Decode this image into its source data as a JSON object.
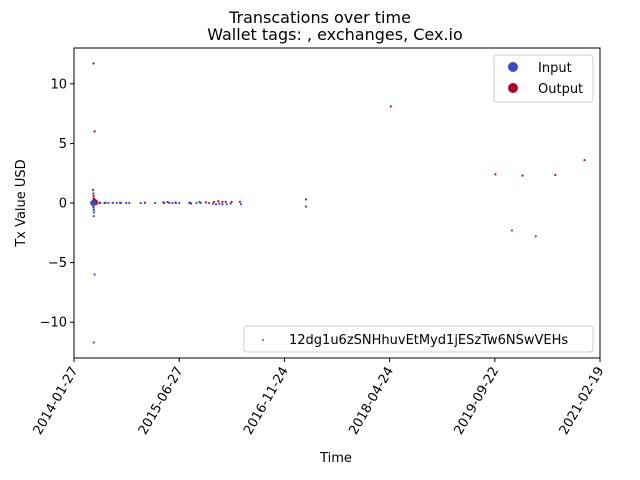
{
  "chart_data": {
    "type": "scatter",
    "title": "Transcations over time",
    "subtitle": "Wallet tags: , exchanges, Cex.io",
    "xlabel": "Time",
    "ylabel": "Tx Value USD",
    "x_range": [
      "2014-01-27",
      "2021-02-19"
    ],
    "ylim": [
      -13,
      13
    ],
    "x_ticks": [
      "2014-01-27",
      "2015-06-27",
      "2016-11-24",
      "2018-04-24",
      "2019-09-22",
      "2021-02-19"
    ],
    "y_ticks": [
      -10,
      -5,
      0,
      5,
      10
    ],
    "y_tick_labels": [
      "−10",
      "−5",
      "0",
      "5",
      "10"
    ],
    "grid": false,
    "legends": [
      {
        "placement": "top-right",
        "entries": [
          {
            "label": "Input",
            "color": "#3b4cc0"
          },
          {
            "label": "Output",
            "color": "#b40426"
          }
        ]
      },
      {
        "placement": "bottom-right",
        "entries": [
          {
            "label": "12dg1u6zSNHhuvEtMyd1jESzTw6NSwVEHs",
            "color": "#1f77b4"
          }
        ]
      }
    ],
    "series": [
      {
        "name": "Output",
        "color": "#b40426",
        "points": [
          {
            "x": "2014-05-03",
            "y": 11.7
          },
          {
            "x": "2014-05-08",
            "y": 6.0
          },
          {
            "x": "2014-05-01",
            "y": 1.1
          },
          {
            "x": "2014-05-02",
            "y": 0.8
          },
          {
            "x": "2014-05-03",
            "y": 0.6
          },
          {
            "x": "2014-05-04",
            "y": 0.4
          },
          {
            "x": "2014-05-05",
            "y": 0.3
          },
          {
            "x": "2014-05-06",
            "y": 0.2
          },
          {
            "x": "2014-05-07",
            "y": 0.1
          },
          {
            "x": "2014-05-10",
            "y": 0.05
          },
          {
            "x": "2014-06-01",
            "y": 0.02
          },
          {
            "x": "2014-07-01",
            "y": 0.02
          },
          {
            "x": "2014-08-05",
            "y": 0.01
          },
          {
            "x": "2014-09-10",
            "y": 0.02
          },
          {
            "x": "2015-01-10",
            "y": 0.02
          },
          {
            "x": "2015-04-10",
            "y": 0.05
          },
          {
            "x": "2015-05-01",
            "y": 0.08
          },
          {
            "x": "2015-06-10",
            "y": 0.05
          },
          {
            "x": "2015-08-20",
            "y": 0.02
          },
          {
            "x": "2015-10-05",
            "y": 0.1
          },
          {
            "x": "2015-11-05",
            "y": 0.05
          },
          {
            "x": "2015-12-15",
            "y": 0.1
          },
          {
            "x": "2016-01-05",
            "y": 0.15
          },
          {
            "x": "2016-01-25",
            "y": 0.1
          },
          {
            "x": "2016-02-10",
            "y": 0.1
          },
          {
            "x": "2016-03-10",
            "y": 0.1
          },
          {
            "x": "2016-04-20",
            "y": 0.1
          },
          {
            "x": "2017-03-10",
            "y": 0.3
          },
          {
            "x": "2018-04-30",
            "y": 8.1
          },
          {
            "x": "2019-09-25",
            "y": 2.4
          },
          {
            "x": "2020-02-05",
            "y": 2.3
          },
          {
            "x": "2020-07-15",
            "y": 2.35
          },
          {
            "x": "2020-12-05",
            "y": 3.6
          }
        ]
      },
      {
        "name": "Input",
        "color": "#3b4cc0",
        "points": [
          {
            "x": "2014-05-01",
            "y": 0.0
          },
          {
            "x": "2014-05-02",
            "y": -0.2
          },
          {
            "x": "2014-05-02",
            "y": -0.3
          },
          {
            "x": "2014-05-03",
            "y": -0.4
          },
          {
            "x": "2014-05-04",
            "y": -0.6
          },
          {
            "x": "2014-05-05",
            "y": -0.8
          },
          {
            "x": "2014-05-04",
            "y": -1.1
          },
          {
            "x": "2014-05-08",
            "y": -6.0
          },
          {
            "x": "2014-05-04",
            "y": -11.7
          },
          {
            "x": "2014-05-20",
            "y": -0.05
          },
          {
            "x": "2014-06-05",
            "y": 0.0
          },
          {
            "x": "2014-06-25",
            "y": 0.0
          },
          {
            "x": "2014-07-15",
            "y": 0.0
          },
          {
            "x": "2014-08-05",
            "y": 0.0
          },
          {
            "x": "2014-08-25",
            "y": 0.0
          },
          {
            "x": "2014-09-15",
            "y": 0.0
          },
          {
            "x": "2014-10-10",
            "y": 0.0
          },
          {
            "x": "2014-10-25",
            "y": 0.0
          },
          {
            "x": "2014-12-20",
            "y": 0.0
          },
          {
            "x": "2015-03-01",
            "y": 0.0
          },
          {
            "x": "2015-04-15",
            "y": 0.0
          },
          {
            "x": "2015-05-10",
            "y": 0.0
          },
          {
            "x": "2015-05-25",
            "y": 0.0
          },
          {
            "x": "2015-06-10",
            "y": 0.0
          },
          {
            "x": "2015-06-27",
            "y": 0.0
          },
          {
            "x": "2015-08-15",
            "y": 0.0
          },
          {
            "x": "2015-08-25",
            "y": -0.05
          },
          {
            "x": "2015-09-20",
            "y": 0.0
          },
          {
            "x": "2015-10-10",
            "y": 0.0
          },
          {
            "x": "2015-11-20",
            "y": 0.0
          },
          {
            "x": "2015-12-10",
            "y": -0.05
          },
          {
            "x": "2015-12-25",
            "y": -0.1
          },
          {
            "x": "2016-01-10",
            "y": -0.05
          },
          {
            "x": "2016-01-25",
            "y": -0.1
          },
          {
            "x": "2016-02-15",
            "y": -0.1
          },
          {
            "x": "2016-03-05",
            "y": -0.05
          },
          {
            "x": "2016-04-25",
            "y": -0.1
          },
          {
            "x": "2017-03-10",
            "y": -0.3
          },
          {
            "x": "2019-12-15",
            "y": -2.3
          },
          {
            "x": "2020-04-10",
            "y": -2.8
          }
        ]
      }
    ]
  }
}
